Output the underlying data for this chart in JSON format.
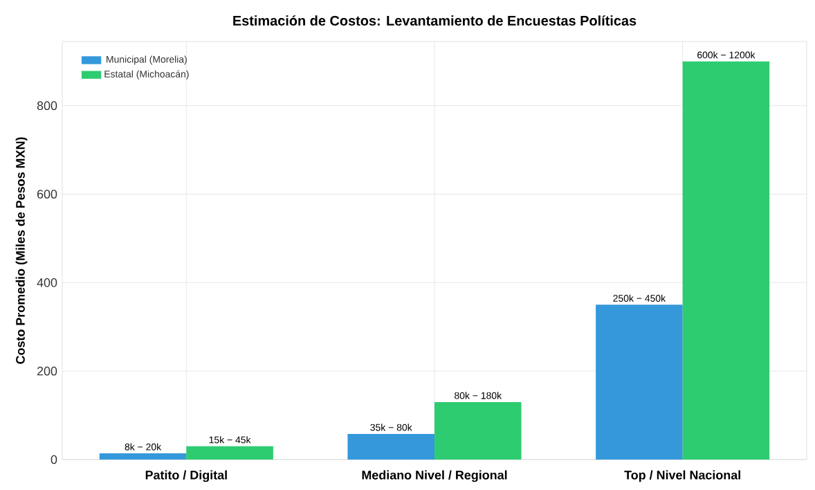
{
  "chart_data": {
    "type": "bar",
    "title": "Estimación de Costos: Levantamiento de Encuestas Políticas",
    "ylabel": "Costo Promedio (Miles de Pesos MXN)",
    "categories": [
      "Patito / Digital",
      "Mediano Nivel / Regional",
      "Top / Nivel Nacional"
    ],
    "series": [
      {
        "name": "Municipal (Morelia)",
        "color": "#3498db",
        "values": [
          14,
          58,
          350
        ]
      },
      {
        "name": "Estatal (Michoacán)",
        "color": "#2ecc71",
        "values": [
          30,
          130,
          900
        ]
      }
    ],
    "annotations": [
      {
        "text": "8k − 20k",
        "x": "Patito / Digital",
        "y": 14
      },
      {
        "text": "35k − 80k",
        "x": "Mediano Nivel / Regional",
        "y": 58
      },
      {
        "text": "250k − 450k",
        "x": "Top / Nivel Nacional",
        "y": 350
      },
      {
        "text": "15k − 45k",
        "x": "Patito / Digital",
        "y": 30
      },
      {
        "text": "80k − 180k",
        "x": "Mediano Nivel / Regional",
        "y": 130
      },
      {
        "text": "600k − 1200k",
        "x": "Top / Nivel Nacional",
        "y": 900
      }
    ],
    "ylim": [
      0,
      945
    ],
    "yticks": [
      0,
      200,
      400,
      600,
      800
    ],
    "grid": true,
    "legend": "top left"
  }
}
